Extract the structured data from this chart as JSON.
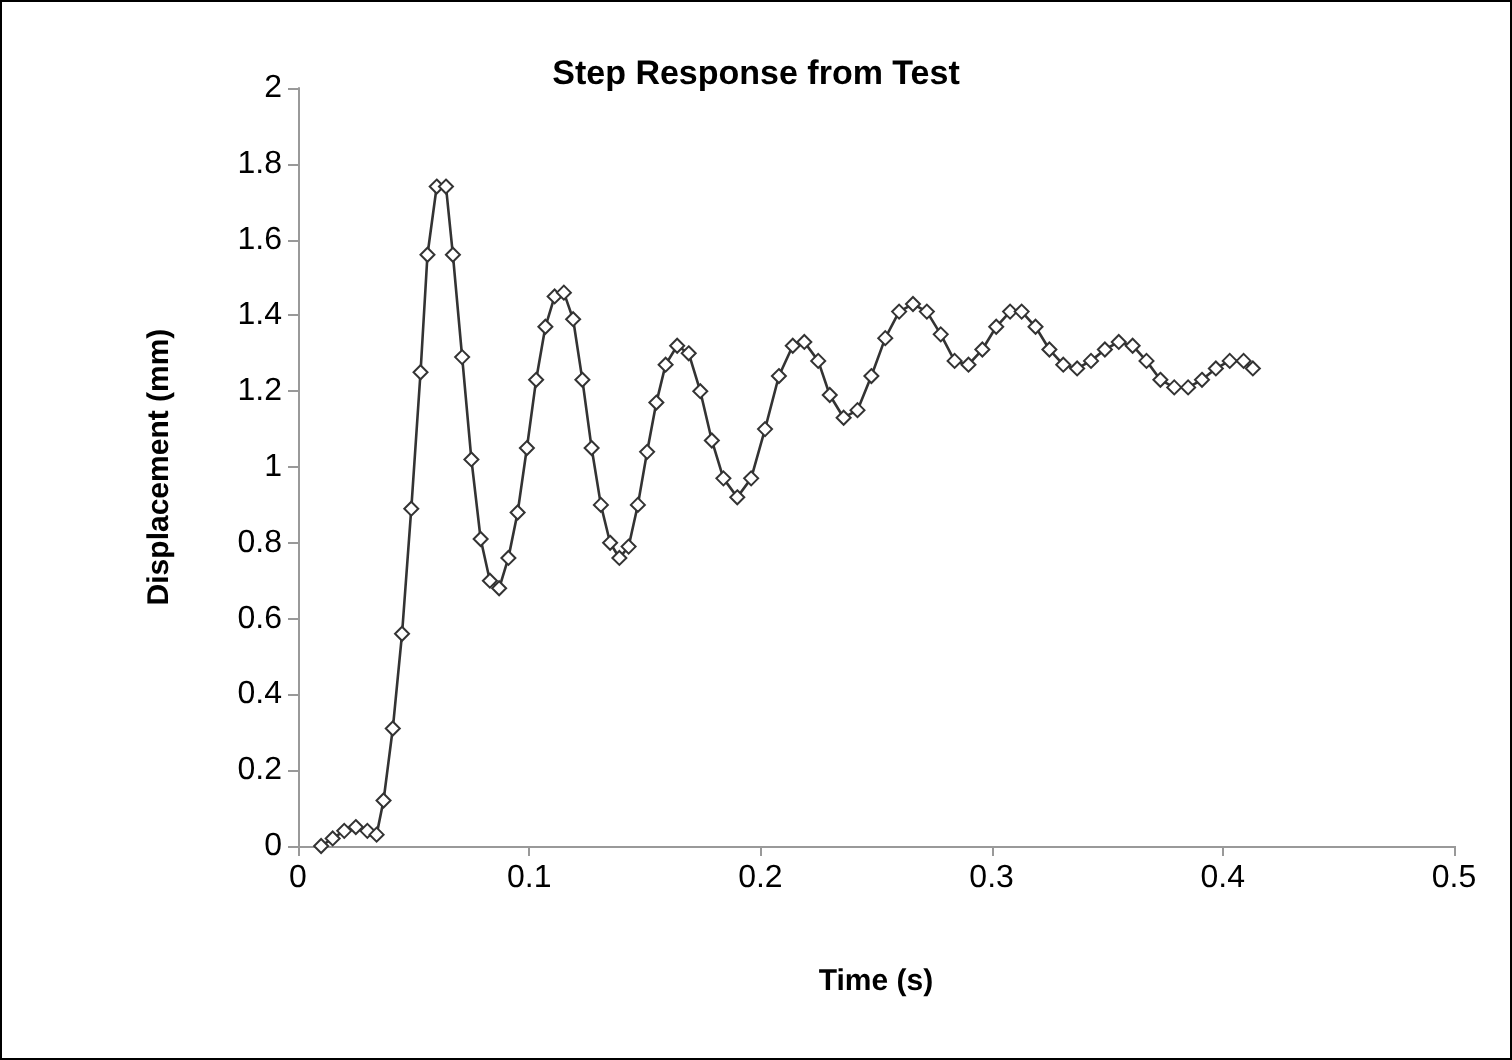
{
  "chart_data": {
    "type": "line",
    "title": "Step Response from Test",
    "xlabel": "Time (s)",
    "ylabel": "Displacement (mm)",
    "xlim": [
      0,
      0.5
    ],
    "xticks": [
      0,
      0.1,
      0.2,
      0.3,
      0.4,
      0.5
    ],
    "ylim": [
      0,
      2
    ],
    "yticks": [
      0,
      0.2,
      0.4,
      0.6,
      0.8,
      1,
      1.2,
      1.4,
      1.6,
      1.8,
      2
    ],
    "grid": false,
    "marker": "diamond",
    "line_style": "solid",
    "series": [
      {
        "color": "#333333",
        "x": [
          0.01,
          0.015,
          0.02,
          0.025,
          0.03,
          0.034,
          0.037,
          0.041,
          0.045,
          0.049,
          0.053,
          0.056,
          0.06,
          0.064,
          0.067,
          0.071,
          0.075,
          0.079,
          0.083,
          0.087,
          0.091,
          0.095,
          0.099,
          0.103,
          0.107,
          0.111,
          0.115,
          0.119,
          0.123,
          0.127,
          0.131,
          0.135,
          0.139,
          0.143,
          0.147,
          0.151,
          0.155,
          0.159,
          0.164,
          0.169,
          0.174,
          0.179,
          0.184,
          0.19,
          0.196,
          0.202,
          0.208,
          0.214,
          0.219,
          0.225,
          0.23,
          0.236,
          0.242,
          0.248,
          0.254,
          0.26,
          0.266,
          0.272,
          0.278,
          0.284,
          0.29,
          0.296,
          0.302,
          0.308,
          0.313,
          0.319,
          0.325,
          0.331,
          0.337,
          0.343,
          0.349,
          0.355,
          0.361,
          0.367,
          0.373,
          0.379,
          0.385,
          0.391,
          0.397,
          0.403,
          0.409,
          0.413
        ],
        "values": [
          0,
          0.02,
          0.04,
          0.05,
          0.04,
          0.03,
          0.12,
          0.31,
          0.56,
          0.89,
          1.25,
          1.56,
          1.74,
          1.74,
          1.56,
          1.29,
          1.02,
          0.81,
          0.7,
          0.68,
          0.76,
          0.88,
          1.05,
          1.23,
          1.37,
          1.45,
          1.46,
          1.39,
          1.23,
          1.05,
          0.9,
          0.8,
          0.76,
          0.79,
          0.9,
          1.04,
          1.17,
          1.27,
          1.32,
          1.3,
          1.2,
          1.07,
          0.97,
          0.92,
          0.97,
          1.1,
          1.24,
          1.32,
          1.33,
          1.28,
          1.19,
          1.13,
          1.15,
          1.24,
          1.34,
          1.41,
          1.43,
          1.41,
          1.35,
          1.28,
          1.27,
          1.31,
          1.37,
          1.41,
          1.41,
          1.37,
          1.31,
          1.27,
          1.26,
          1.28,
          1.31,
          1.33,
          1.32,
          1.28,
          1.23,
          1.21,
          1.21,
          1.23,
          1.26,
          1.28,
          1.28,
          1.26
        ]
      }
    ]
  }
}
